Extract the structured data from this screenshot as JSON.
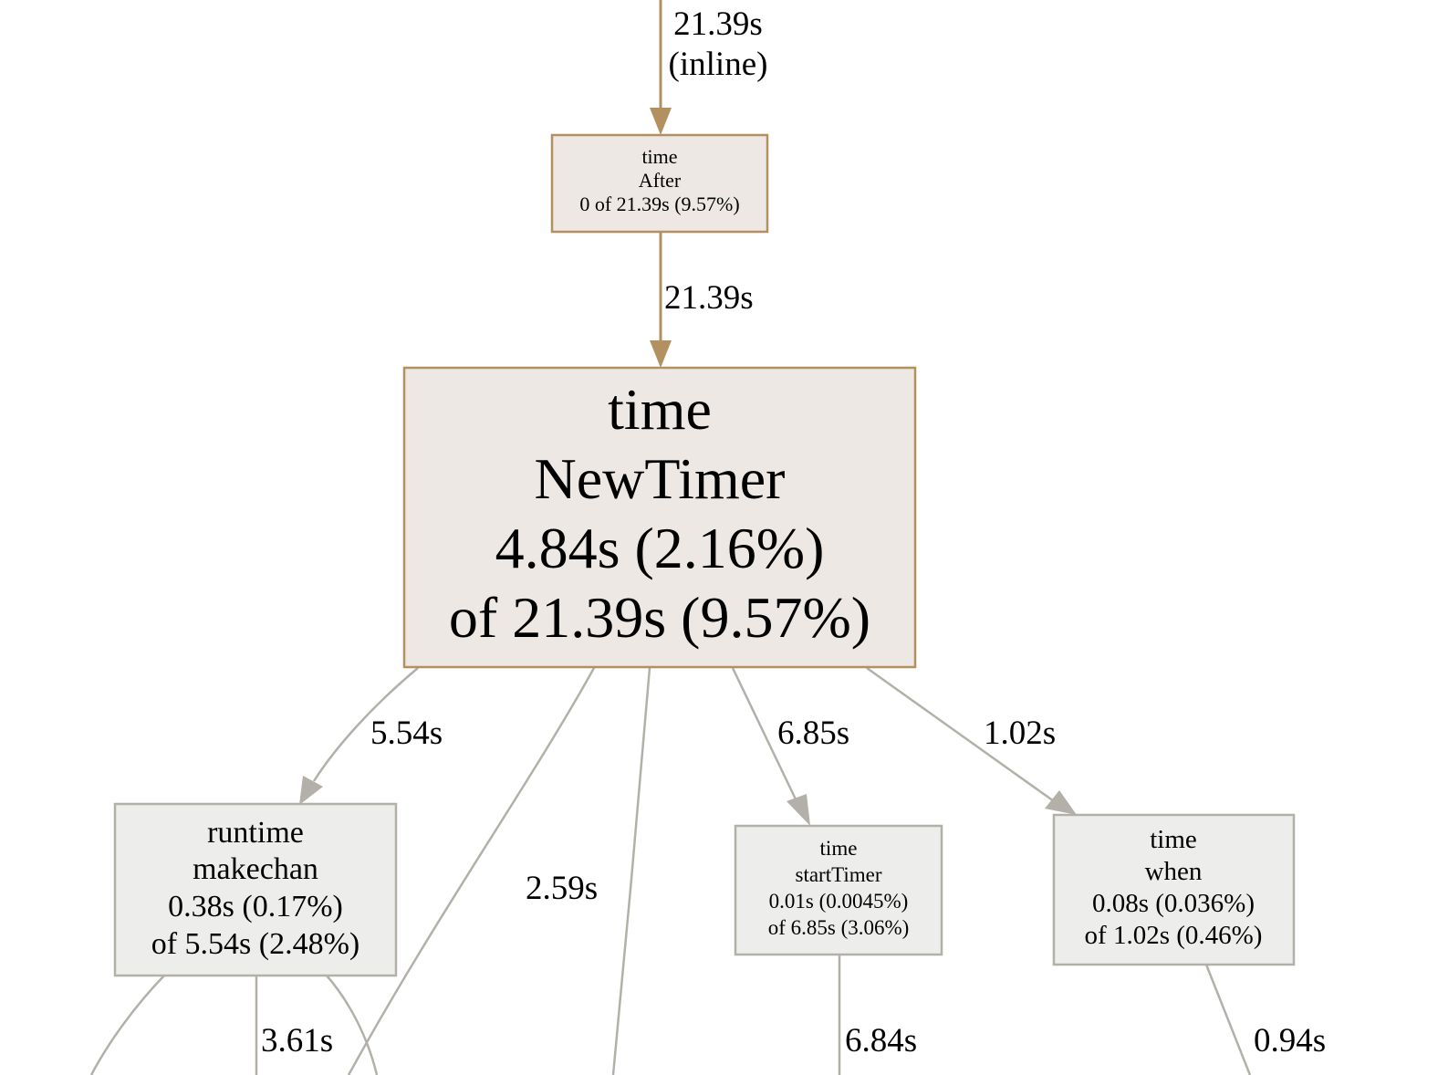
{
  "colors": {
    "hot_edge": "#b2905f",
    "cold_edge": "#b2b0a8",
    "hot_node_fill": "#ede8e4",
    "hot_node_border": "#b2905f",
    "cold_node_fill": "#ededec",
    "cold_node_border": "#b2b0a8"
  },
  "nodes": {
    "after": {
      "package": "time",
      "func": "After",
      "stat": "0 of 21.39s (9.57%)"
    },
    "newtimer": {
      "package": "time",
      "func": "NewTimer",
      "flat": "4.84s (2.16%)",
      "cum": "of 21.39s (9.57%)"
    },
    "makechan": {
      "package": "runtime",
      "func": "makechan",
      "flat": "0.38s (0.17%)",
      "cum": "of 5.54s (2.48%)"
    },
    "starttimer": {
      "package": "time",
      "func": "startTimer",
      "flat": "0.01s (0.0045%)",
      "cum": "of 6.85s (3.06%)"
    },
    "when": {
      "package": "time",
      "func": "when",
      "flat": "0.08s (0.036%)",
      "cum": "of 1.02s (0.46%)"
    }
  },
  "edges": {
    "top_to_after": {
      "weight": "21.39s",
      "note": "(inline)"
    },
    "after_to_newtimer": {
      "weight": "21.39s"
    },
    "newtimer_to_makechan": {
      "weight": "5.54s"
    },
    "newtimer_down": {
      "weight": "2.59s"
    },
    "newtimer_to_starttimer": {
      "weight": "6.85s"
    },
    "newtimer_to_when": {
      "weight": "1.02s"
    },
    "makechan_down": {
      "weight": "3.61s"
    },
    "starttimer_down": {
      "weight": "6.84s"
    },
    "when_down": {
      "weight": "0.94s"
    }
  }
}
